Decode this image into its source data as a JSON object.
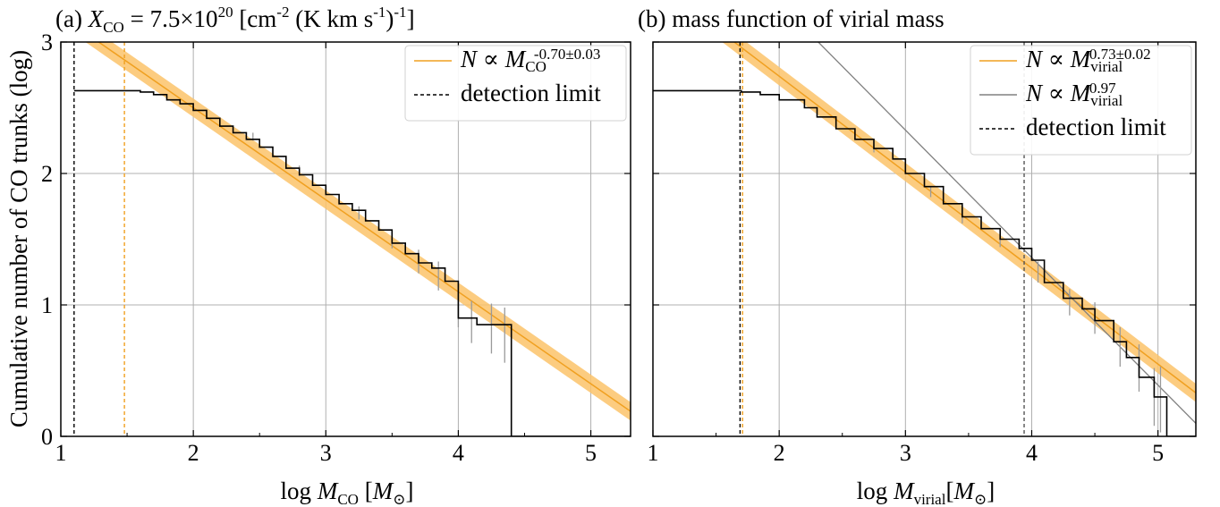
{
  "chart_data": [
    {
      "type": "line",
      "panel": "a",
      "title": {
        "prefix": "(a) ",
        "var": "X",
        "var_sub": "CO",
        "mid": " = 7.5×10",
        "exp": "20",
        "unit_a": " [cm",
        "unit_a_sup": "-2",
        "unit_b": " (K km s",
        "unit_b_sup": "-1",
        "unit_c": ")",
        "unit_c_sup": "-1",
        "unit_d": "]"
      },
      "xlabel": {
        "pre": "log ",
        "var": "M",
        "sub": "CO",
        "post": " [",
        "unit": "M",
        "unit_sub": "⊙",
        "close": "]"
      },
      "ylabel": "Cumulative number of CO trunks (log)",
      "xlim": [
        1,
        5.3
      ],
      "ylim": [
        0,
        3
      ],
      "xticks": [
        "1",
        "2",
        "3",
        "4",
        "5"
      ],
      "yticks": [
        "0",
        "1",
        "2",
        "3"
      ],
      "grid": true,
      "legend_position": "top-right",
      "legend": [
        {
          "kind": "fit",
          "text_pre": "N ∝ ",
          "var": "M",
          "sub": "CO",
          "sup": "-0.70±0.03"
        },
        {
          "kind": "detection",
          "text": "detection limit"
        }
      ],
      "fit": {
        "slope": -0.7,
        "slope_err": 0.03,
        "intercept": 3.9
      },
      "detection_limits": [
        {
          "x": 1.1,
          "color": "#000000"
        },
        {
          "x": 1.48,
          "color": "#f0a020"
        }
      ],
      "cumulative_step": {
        "x": [
          1.1,
          1.6,
          1.7,
          1.8,
          1.9,
          2.0,
          2.1,
          2.2,
          2.3,
          2.4,
          2.5,
          2.6,
          2.7,
          2.8,
          2.9,
          3.0,
          3.1,
          3.2,
          3.3,
          3.4,
          3.5,
          3.6,
          3.7,
          3.8,
          3.9,
          4.0,
          4.14,
          4.4,
          4.4,
          5.3
        ],
        "y": [
          2.63,
          2.62,
          2.6,
          2.56,
          2.53,
          2.48,
          2.42,
          2.36,
          2.31,
          2.26,
          2.2,
          2.13,
          2.04,
          1.99,
          1.91,
          1.84,
          1.77,
          1.72,
          1.64,
          1.57,
          1.47,
          1.39,
          1.32,
          1.28,
          1.18,
          0.9,
          0.85,
          0.78,
          0.0,
          0.0
        ]
      },
      "errorbars": [
        {
          "x": 2.45,
          "y": 2.28,
          "err": 0.03
        },
        {
          "x": 2.8,
          "y": 2.02,
          "err": 0.04
        },
        {
          "x": 3.25,
          "y": 1.7,
          "err": 0.05
        },
        {
          "x": 3.5,
          "y": 1.5,
          "err": 0.07
        },
        {
          "x": 3.7,
          "y": 1.33,
          "err": 0.09
        },
        {
          "x": 3.85,
          "y": 1.22,
          "err": 0.11
        },
        {
          "x": 4.0,
          "y": 0.97,
          "err": 0.14
        },
        {
          "x": 4.1,
          "y": 0.87,
          "err": 0.16
        },
        {
          "x": 4.25,
          "y": 0.82,
          "err": 0.19
        },
        {
          "x": 4.35,
          "y": 0.77,
          "err": 0.21
        }
      ]
    },
    {
      "type": "line",
      "panel": "b",
      "title": {
        "text": "(b) mass function of virial mass"
      },
      "xlabel": {
        "pre": "log ",
        "var": "M",
        "sub": "virial",
        "post": "[",
        "unit": "M",
        "unit_sub": "⊙",
        "close": "]"
      },
      "ylabel": "",
      "xlim": [
        1,
        5.3
      ],
      "ylim": [
        0,
        3
      ],
      "xticks": [
        "1",
        "2",
        "3",
        "4",
        "5"
      ],
      "yticks": [],
      "grid": true,
      "legend_position": "top-right",
      "legend": [
        {
          "kind": "fit",
          "text_pre": "N ∝ ",
          "var": "M",
          "sub": "virial",
          "sup": "-0.73±0.02"
        },
        {
          "kind": "steep",
          "text_pre": "N ∝ ",
          "var": "M",
          "sub": "virial",
          "sup": "-0.97"
        },
        {
          "kind": "detection",
          "text": "detection limit"
        }
      ],
      "fit": {
        "slope": -0.73,
        "slope_err": 0.02,
        "intercept": 4.2
      },
      "steep_line": {
        "slope": -0.97,
        "intercept": 5.24
      },
      "detection_limits": [
        {
          "x": 1.69,
          "color": "#000000"
        },
        {
          "x": 1.71,
          "color": "#f0a020"
        },
        {
          "x": 3.94,
          "color": "#555555"
        }
      ],
      "cumulative_step": {
        "x": [
          1.0,
          1.7,
          1.85,
          2.0,
          2.2,
          2.3,
          2.45,
          2.6,
          2.75,
          2.9,
          3.0,
          3.15,
          3.3,
          3.45,
          3.6,
          3.75,
          3.9,
          4.0,
          4.1,
          4.25,
          4.4,
          4.5,
          4.65,
          4.75,
          4.85,
          4.97,
          5.07,
          5.3
        ],
        "y": [
          2.63,
          2.62,
          2.6,
          2.56,
          2.5,
          2.43,
          2.34,
          2.26,
          2.19,
          2.11,
          2.0,
          1.9,
          1.77,
          1.67,
          1.58,
          1.5,
          1.43,
          1.34,
          1.17,
          1.05,
          0.97,
          0.88,
          0.72,
          0.6,
          0.45,
          0.3,
          0.0,
          0.0
        ]
      },
      "errorbars": [
        {
          "x": 2.75,
          "y": 2.19,
          "err": 0.03
        },
        {
          "x": 3.2,
          "y": 1.86,
          "err": 0.04
        },
        {
          "x": 3.45,
          "y": 1.67,
          "err": 0.05
        },
        {
          "x": 3.75,
          "y": 1.5,
          "err": 0.06
        },
        {
          "x": 4.05,
          "y": 1.25,
          "err": 0.08
        },
        {
          "x": 4.3,
          "y": 1.02,
          "err": 0.1
        },
        {
          "x": 4.5,
          "y": 0.9,
          "err": 0.12
        },
        {
          "x": 4.7,
          "y": 0.68,
          "err": 0.15
        },
        {
          "x": 4.85,
          "y": 0.52,
          "err": 0.18
        },
        {
          "x": 4.97,
          "y": 0.3,
          "err": 0.22
        },
        {
          "x": 5.02,
          "y": 0.28,
          "err": 0.25
        }
      ]
    }
  ],
  "colors": {
    "fit": "#f0a020",
    "band": "#fbc36a",
    "grid": "#b0b0b0",
    "step": "#000000",
    "errorbar": "#9a9a9a",
    "steep": "#808080"
  }
}
